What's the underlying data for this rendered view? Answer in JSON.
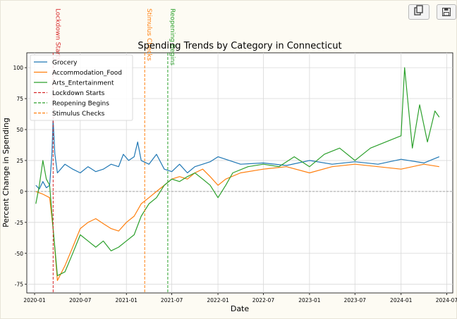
{
  "toolbar": {
    "copy_icon": "copy-icon",
    "save_icon": "save-icon"
  },
  "chart_data": {
    "type": "line",
    "title": "Spending Trends by Category in Connecticut",
    "xlabel": "Date",
    "ylabel": "Percent Change in Spending",
    "xlim": [
      "2019-12-01",
      "2024-07-25"
    ],
    "ylim": [
      -82,
      112
    ],
    "x_ticks": [
      "2020-01",
      "2020-07",
      "2021-01",
      "2021-07",
      "2022-01",
      "2022-07",
      "2023-01",
      "2023-07",
      "2024-01",
      "2024-07"
    ],
    "y_ticks": [
      -75,
      -50,
      -25,
      0,
      25,
      50,
      75,
      100
    ],
    "grid": true,
    "zero_line": true,
    "legend_position": "upper-left",
    "series": [
      {
        "name": "Grocery",
        "color": "#1f77b4",
        "points": [
          [
            "2020-01-06",
            5
          ],
          [
            "2020-01-20",
            2
          ],
          [
            "2020-02-03",
            8
          ],
          [
            "2020-02-17",
            3
          ],
          [
            "2020-03-01",
            5
          ],
          [
            "2020-03-10",
            30
          ],
          [
            "2020-03-15",
            58
          ],
          [
            "2020-03-22",
            30
          ],
          [
            "2020-04-01",
            15
          ],
          [
            "2020-05-01",
            22
          ],
          [
            "2020-06-01",
            18
          ],
          [
            "2020-07-01",
            15
          ],
          [
            "2020-08-01",
            20
          ],
          [
            "2020-09-01",
            16
          ],
          [
            "2020-10-01",
            18
          ],
          [
            "2020-11-01",
            22
          ],
          [
            "2020-12-01",
            20
          ],
          [
            "2020-12-20",
            30
          ],
          [
            "2021-01-10",
            25
          ],
          [
            "2021-02-01",
            28
          ],
          [
            "2021-02-15",
            40
          ],
          [
            "2021-03-01",
            25
          ],
          [
            "2021-04-01",
            22
          ],
          [
            "2021-05-01",
            30
          ],
          [
            "2021-06-01",
            18
          ],
          [
            "2021-07-01",
            16
          ],
          [
            "2021-08-01",
            22
          ],
          [
            "2021-09-01",
            15
          ],
          [
            "2021-10-01",
            20
          ],
          [
            "2021-11-01",
            22
          ],
          [
            "2021-12-01",
            24
          ],
          [
            "2022-01-01",
            28
          ],
          [
            "2022-04-01",
            22
          ],
          [
            "2022-07-01",
            23
          ],
          [
            "2022-10-01",
            21
          ],
          [
            "2023-01-01",
            25
          ],
          [
            "2023-04-01",
            22
          ],
          [
            "2023-07-01",
            24
          ],
          [
            "2023-10-01",
            22
          ],
          [
            "2024-01-01",
            26
          ],
          [
            "2024-04-01",
            23
          ],
          [
            "2024-06-01",
            28
          ]
        ]
      },
      {
        "name": "Accommodation_Food",
        "color": "#ff7f0e",
        "points": [
          [
            "2020-01-06",
            0
          ],
          [
            "2020-02-01",
            -2
          ],
          [
            "2020-03-01",
            -5
          ],
          [
            "2020-03-15",
            -30
          ],
          [
            "2020-04-01",
            -72
          ],
          [
            "2020-05-01",
            -60
          ],
          [
            "2020-06-01",
            -45
          ],
          [
            "2020-07-01",
            -30
          ],
          [
            "2020-08-01",
            -25
          ],
          [
            "2020-09-01",
            -22
          ],
          [
            "2020-10-01",
            -26
          ],
          [
            "2020-11-01",
            -30
          ],
          [
            "2020-12-01",
            -32
          ],
          [
            "2021-01-01",
            -25
          ],
          [
            "2021-02-01",
            -20
          ],
          [
            "2021-03-01",
            -10
          ],
          [
            "2021-04-01",
            -5
          ],
          [
            "2021-05-01",
            0
          ],
          [
            "2021-06-01",
            5
          ],
          [
            "2021-07-01",
            10
          ],
          [
            "2021-08-01",
            12
          ],
          [
            "2021-09-01",
            10
          ],
          [
            "2021-10-01",
            15
          ],
          [
            "2021-11-01",
            18
          ],
          [
            "2021-12-01",
            12
          ],
          [
            "2022-01-01",
            5
          ],
          [
            "2022-02-01",
            10
          ],
          [
            "2022-04-01",
            15
          ],
          [
            "2022-07-01",
            18
          ],
          [
            "2022-10-01",
            20
          ],
          [
            "2023-01-01",
            15
          ],
          [
            "2023-04-01",
            20
          ],
          [
            "2023-07-01",
            22
          ],
          [
            "2023-10-01",
            20
          ],
          [
            "2024-01-01",
            18
          ],
          [
            "2024-04-01",
            22
          ],
          [
            "2024-06-01",
            20
          ]
        ]
      },
      {
        "name": "Arts_Entertainment",
        "color": "#2ca02c",
        "points": [
          [
            "2020-01-06",
            -10
          ],
          [
            "2020-01-20",
            5
          ],
          [
            "2020-02-03",
            25
          ],
          [
            "2020-02-17",
            10
          ],
          [
            "2020-03-01",
            5
          ],
          [
            "2020-03-15",
            -30
          ],
          [
            "2020-04-01",
            -68
          ],
          [
            "2020-05-01",
            -65
          ],
          [
            "2020-06-01",
            -50
          ],
          [
            "2020-07-01",
            -35
          ],
          [
            "2020-08-01",
            -40
          ],
          [
            "2020-09-01",
            -45
          ],
          [
            "2020-10-01",
            -40
          ],
          [
            "2020-11-01",
            -48
          ],
          [
            "2020-12-01",
            -45
          ],
          [
            "2021-01-01",
            -40
          ],
          [
            "2021-02-01",
            -35
          ],
          [
            "2021-03-01",
            -20
          ],
          [
            "2021-04-01",
            -10
          ],
          [
            "2021-05-01",
            -5
          ],
          [
            "2021-06-01",
            5
          ],
          [
            "2021-07-01",
            10
          ],
          [
            "2021-08-01",
            8
          ],
          [
            "2021-09-01",
            12
          ],
          [
            "2021-10-01",
            15
          ],
          [
            "2021-11-01",
            10
          ],
          [
            "2021-12-01",
            5
          ],
          [
            "2022-01-01",
            -5
          ],
          [
            "2022-02-01",
            5
          ],
          [
            "2022-03-01",
            15
          ],
          [
            "2022-05-01",
            20
          ],
          [
            "2022-07-01",
            22
          ],
          [
            "2022-09-01",
            20
          ],
          [
            "2022-11-01",
            28
          ],
          [
            "2023-01-01",
            20
          ],
          [
            "2023-03-01",
            30
          ],
          [
            "2023-05-01",
            35
          ],
          [
            "2023-07-01",
            25
          ],
          [
            "2023-09-01",
            35
          ],
          [
            "2023-11-01",
            40
          ],
          [
            "2024-01-01",
            45
          ],
          [
            "2024-01-15",
            100
          ],
          [
            "2024-02-15",
            35
          ],
          [
            "2024-03-15",
            70
          ],
          [
            "2024-04-15",
            40
          ],
          [
            "2024-05-15",
            65
          ],
          [
            "2024-06-01",
            60
          ]
        ]
      }
    ],
    "events": [
      {
        "name": "Lockdown Starts",
        "date": "2020-03-15",
        "color": "#d62728"
      },
      {
        "name": "Reopening Begins",
        "date": "2021-06-15",
        "color": "#2ca02c"
      },
      {
        "name": "Stimulus Checks",
        "date": "2021-03-15",
        "color": "#ff7f0e"
      }
    ]
  }
}
